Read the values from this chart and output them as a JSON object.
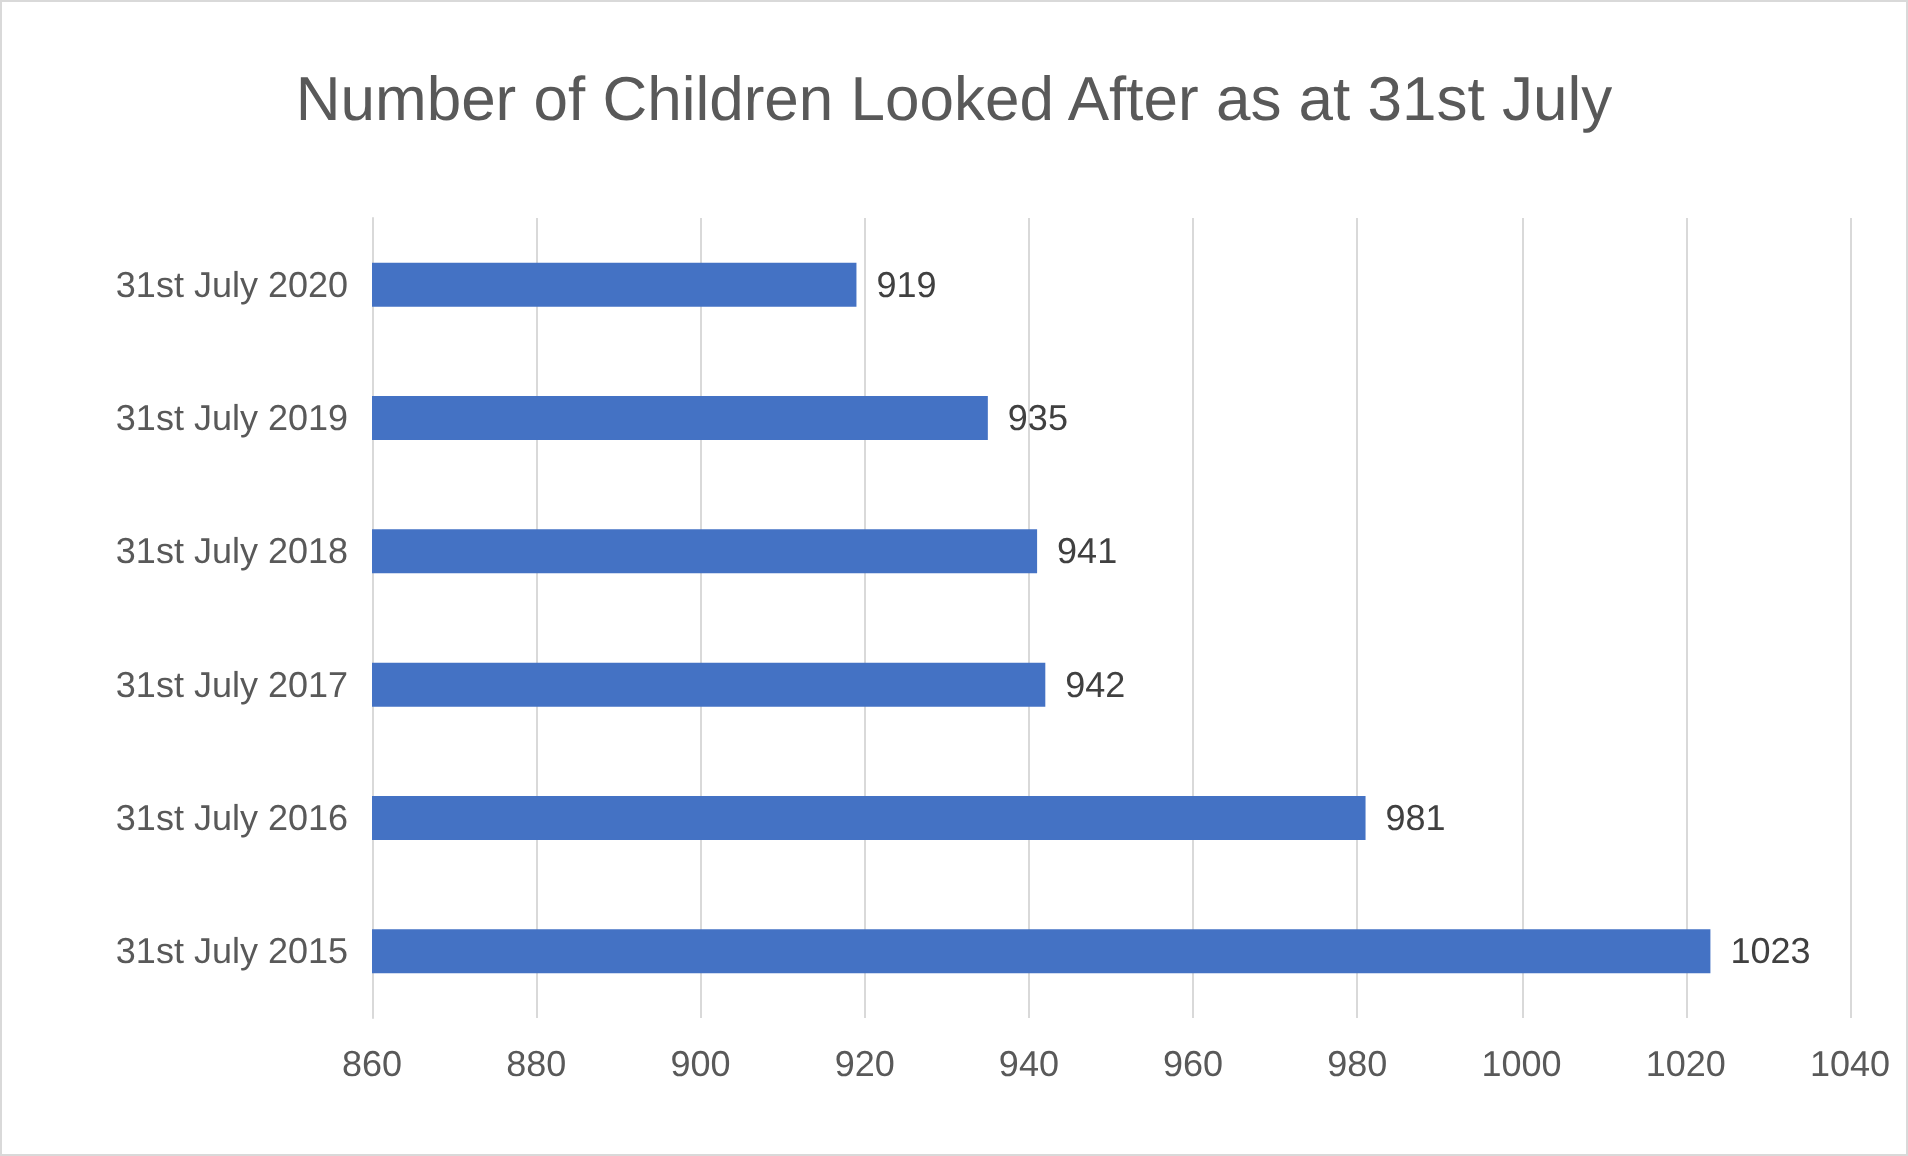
{
  "chart_data": {
    "type": "bar",
    "title": "Number of Children Looked After as at 31st July",
    "orientation": "horizontal",
    "categories": [
      "31st July 2020",
      "31st July 2019",
      "31st July 2018",
      "31st July 2017",
      "31st July 2016",
      "31st July 2015"
    ],
    "values": [
      919,
      935,
      941,
      942,
      981,
      1023
    ],
    "color": "#4472c4",
    "xlim": [
      860,
      1040
    ],
    "xticks": [
      860,
      880,
      900,
      920,
      940,
      960,
      980,
      1000,
      1020,
      1040
    ],
    "grid": "x",
    "data_labels": true
  }
}
